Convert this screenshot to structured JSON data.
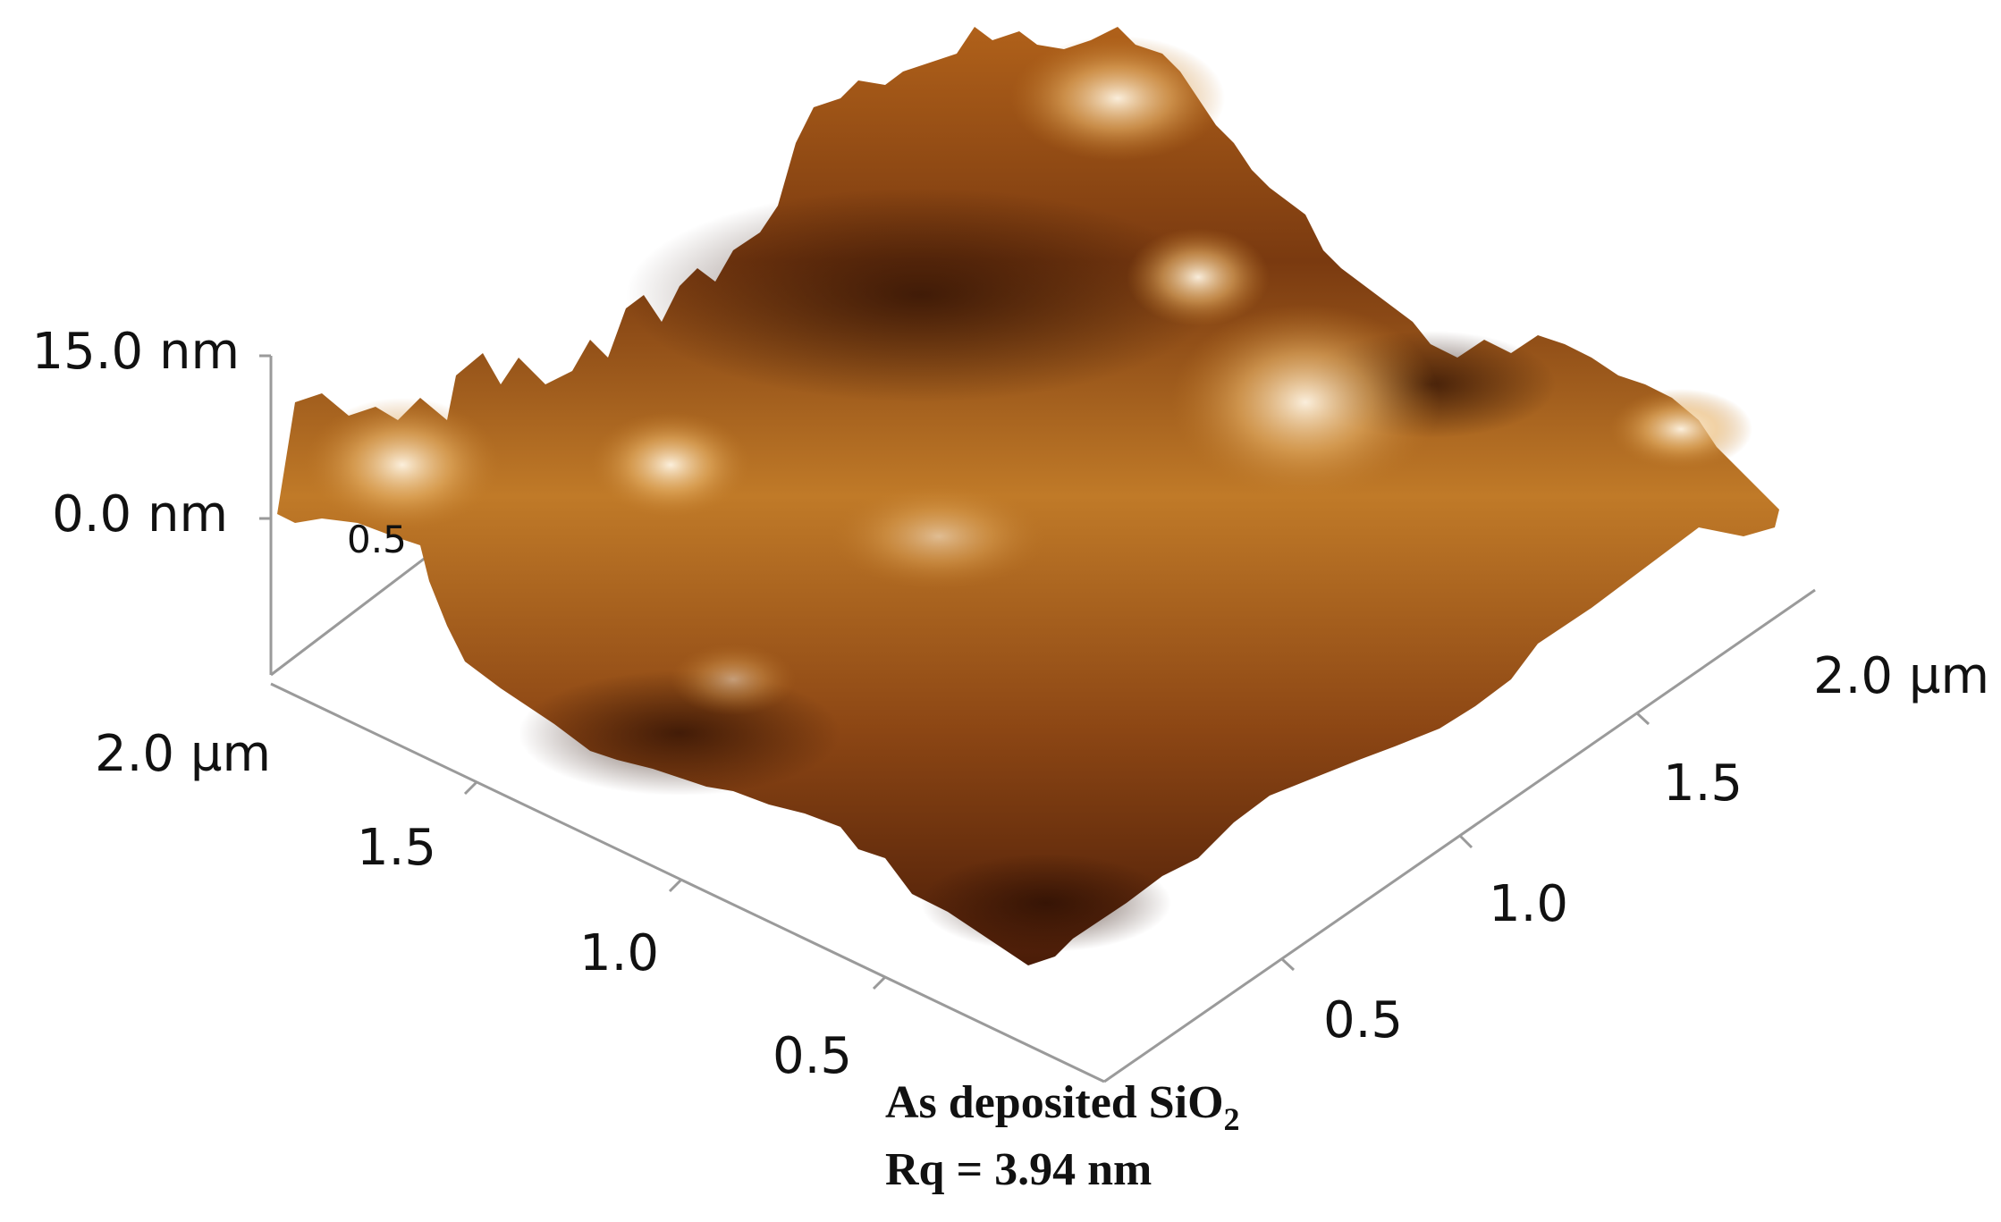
{
  "z_axis": {
    "top_label": "15.0 nm",
    "bottom_label": "0.0 nm",
    "hidden_tick": "0.5"
  },
  "left_axis": {
    "ticks": [
      "2.0 µm",
      "1.5",
      "1.0",
      "0.5"
    ]
  },
  "right_axis": {
    "ticks": [
      "2.0 µm",
      "1.5",
      "1.0",
      "0.5"
    ]
  },
  "caption": {
    "line1_text": "As deposited SiO",
    "line1_subscript": "2",
    "line2": "Rq = 3.94 nm"
  },
  "colors": {
    "surface_dark": "#3a1606",
    "surface_mid": "#9a4f14",
    "surface_light": "#d99a3e",
    "surface_highlight": "#fff2dc",
    "axis_line": "#9a9a9a",
    "text": "#111111"
  }
}
